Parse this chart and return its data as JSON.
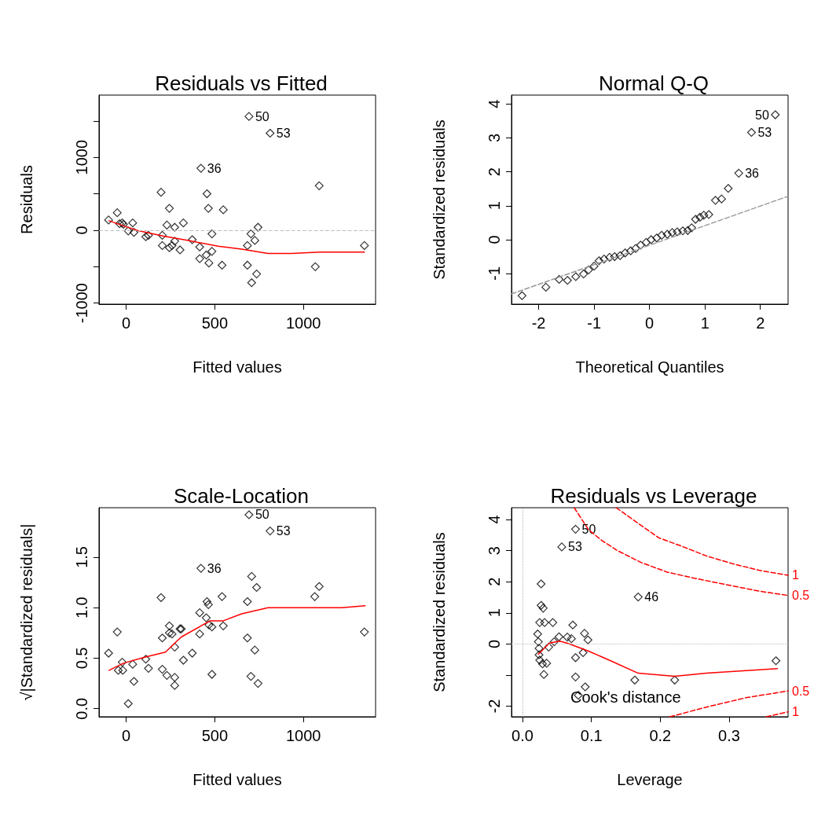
{
  "chart_data": [
    {
      "type": "scatter",
      "title": "Residuals vs Fitted",
      "xlabel": "Fitted values",
      "ylabel": "Residuals",
      "marker": "diamond",
      "xlim": [
        -153,
        1407
      ],
      "ylim": [
        -1014,
        1853
      ],
      "xticks": [
        0,
        500,
        1000
      ],
      "yticks": [
        -1000,
        {
          "value": -500,
          "label": null
        },
        0,
        {
          "value": 500,
          "label": null
        },
        1000,
        {
          "value": 1500,
          "label": null
        }
      ],
      "series": [
        {
          "color": "#000000",
          "x": [
            -99,
            -50,
            -37,
            -22,
            -15,
            12,
            37,
            44,
            111,
            126,
            197,
            204,
            204,
            230,
            244,
            244,
            259,
            274,
            274,
            304,
            323,
            373,
            415,
            415,
            422,
            452,
            456,
            464,
            467,
            484,
            484,
            541,
            548,
            684,
            684,
            693,
            704,
            708,
            726,
            736,
            744,
            812,
            1067,
            1089,
            1344
          ],
          "values": [
            140,
            240,
            90,
            100,
            80,
            -10,
            100,
            -30,
            -90,
            -70,
            520,
            -70,
            -210,
            70,
            300,
            -240,
            -210,
            -150,
            40,
            -270,
            100,
            -130,
            -230,
            -390,
            850,
            -340,
            500,
            300,
            -450,
            -50,
            -290,
            -480,
            280,
            -210,
            -480,
            1560,
            -50,
            -720,
            -140,
            -600,
            40,
            1330,
            -500,
            610,
            -210
          ]
        },
        {
          "type": "line",
          "marker": "none",
          "color": "#ff0000",
          "x": [
            -96,
            -15,
            74,
            207,
            370,
            519,
            652,
            800,
            933,
            1096,
            1344
          ],
          "values": [
            130,
            60,
            -10,
            -80,
            -150,
            -220,
            -260,
            -320,
            -320,
            -300,
            -300
          ]
        }
      ],
      "ref_lines": [
        {
          "axis": "y",
          "value": 0,
          "color": "#bebebe",
          "line_style": "dashed"
        }
      ],
      "annotations": [
        {
          "text": "50",
          "x": 693,
          "y": 1560
        },
        {
          "text": "53",
          "x": 812,
          "y": 1330
        },
        {
          "text": "36",
          "x": 422,
          "y": 850
        }
      ]
    },
    {
      "type": "scatter",
      "title": "Normal Q-Q",
      "xlabel": "Theoretical Quantiles",
      "ylabel": "Standardized residuals",
      "marker": "diamond",
      "xlim": [
        -2.49,
        2.5
      ],
      "ylim": [
        -1.9,
        4.26
      ],
      "xticks": [
        -2,
        -1,
        0,
        1,
        2
      ],
      "yticks": [
        -1,
        0,
        1,
        2,
        3,
        4
      ],
      "series": [
        {
          "color": "#000000",
          "x": [
            -2.3,
            -1.87,
            -1.63,
            -1.48,
            -1.33,
            -1.19,
            -1.1,
            -1.0,
            -0.91,
            -0.82,
            -0.72,
            -0.63,
            -0.53,
            -0.44,
            -0.34,
            -0.25,
            -0.16,
            -0.06,
            0.03,
            0.13,
            0.22,
            0.32,
            0.41,
            0.5,
            0.6,
            0.69,
            0.76,
            0.83,
            0.91,
            0.98,
            1.07,
            1.19,
            1.3,
            1.42,
            1.61,
            1.84,
            2.27
          ],
          "values": [
            -1.65,
            -1.4,
            -1.17,
            -1.2,
            -1.09,
            -1.01,
            -0.89,
            -0.78,
            -0.62,
            -0.57,
            -0.52,
            -0.5,
            -0.47,
            -0.39,
            -0.33,
            -0.26,
            -0.16,
            -0.08,
            0.0,
            0.05,
            0.13,
            0.16,
            0.21,
            0.23,
            0.26,
            0.27,
            0.35,
            0.6,
            0.66,
            0.72,
            0.74,
            1.16,
            1.2,
            1.51,
            1.96,
            3.16,
            3.68
          ]
        },
        {
          "type": "line",
          "marker": "none",
          "line_style": "dashed",
          "color": "#999999",
          "x": [
            -2.49,
            2.5
          ],
          "values": [
            -1.6,
            1.28
          ]
        }
      ],
      "annotations": [
        {
          "text": "50",
          "x": 2.27,
          "y": 3.68
        },
        {
          "text": "53",
          "x": 1.84,
          "y": 3.16
        },
        {
          "text": "36",
          "x": 1.61,
          "y": 1.96
        }
      ]
    },
    {
      "type": "scatter",
      "title": "Scale-Location",
      "xlabel": "Fitted values",
      "ylabel": "√|Standardized residuals|",
      "marker": "diamond",
      "xlim": [
        -153,
        1407
      ],
      "ylim": [
        -0.08,
        1.99
      ],
      "xticks": [
        0,
        500,
        1000
      ],
      "yticks": [
        {
          "value": 0,
          "label": "0.0"
        },
        0.5,
        {
          "value": 1,
          "label": "1.0"
        },
        1.5
      ],
      "series": [
        {
          "color": "#000000",
          "x": [
            -99,
            -50,
            -44,
            -22,
            -19,
            12,
            37,
            44,
            111,
            126,
            197,
            204,
            204,
            230,
            244,
            244,
            259,
            274,
            274,
            274,
            304,
            311,
            323,
            373,
            415,
            415,
            422,
            452,
            456,
            464,
            467,
            484,
            484,
            541,
            548,
            684,
            684,
            693,
            704,
            708,
            726,
            736,
            744,
            812,
            1064,
            1089,
            1344
          ],
          "values": [
            0.55,
            0.76,
            0.38,
            0.46,
            0.38,
            0.05,
            0.44,
            0.27,
            0.49,
            0.4,
            1.1,
            0.7,
            0.39,
            0.33,
            0.82,
            0.75,
            0.74,
            0.61,
            0.31,
            0.23,
            0.79,
            0.79,
            0.48,
            0.55,
            0.95,
            0.74,
            1.39,
            0.9,
            1.06,
            1.03,
            0.83,
            0.81,
            0.34,
            1.11,
            0.82,
            1.06,
            0.7,
            1.92,
            0.32,
            1.31,
            0.58,
            1.2,
            0.25,
            1.76,
            1.11,
            1.21,
            0.76
          ]
        },
        {
          "type": "line",
          "marker": "none",
          "color": "#ff0000",
          "x": [
            -96,
            -15,
            104,
            222,
            311,
            474,
            548,
            652,
            800,
            1215,
            1348
          ],
          "values": [
            0.38,
            0.45,
            0.51,
            0.56,
            0.71,
            0.87,
            0.87,
            0.94,
            1.0,
            1.0,
            1.02
          ]
        }
      ],
      "annotations": [
        {
          "text": "50",
          "x": 693,
          "y": 1.92
        },
        {
          "text": "53",
          "x": 812,
          "y": 1.76
        },
        {
          "text": "36",
          "x": 422,
          "y": 1.39
        }
      ]
    },
    {
      "type": "scatter",
      "title": "Residuals vs Leverage",
      "xlabel": "Leverage",
      "ylabel": "Standardized residuals",
      "marker": "diamond",
      "legend": "bottom left",
      "xlim": [
        -0.016,
        0.3856
      ],
      "ylim": [
        -2.34,
        4.38
      ],
      "xticks": [
        {
          "value": 0,
          "label": "0.0"
        },
        0.1,
        0.2,
        0.3
      ],
      "yticks": [
        -2,
        {
          "value": -1,
          "label": null
        },
        0,
        1,
        2,
        3,
        4
      ],
      "series": [
        {
          "color": "#000000",
          "x": [
            0.077,
            0.057,
            0.027,
            0.027,
            0.03,
            0.025,
            0.032,
            0.044,
            0.073,
            0.09,
            0.095,
            0.022,
            0.023,
            0.024,
            0.024,
            0.025,
            0.029,
            0.031,
            0.035,
            0.038,
            0.046,
            0.053,
            0.065,
            0.071,
            0.077,
            0.088,
            0.077,
            0.091,
            0.081,
            0.168,
            0.163,
            0.221,
            0.368
          ],
          "values": [
            3.69,
            3.12,
            1.93,
            1.24,
            1.15,
            0.69,
            0.69,
            0.69,
            0.61,
            0.34,
            0.13,
            0.32,
            0.07,
            -0.14,
            -0.35,
            -0.52,
            -0.64,
            -0.98,
            -0.62,
            -0.1,
            0.07,
            0.23,
            0.22,
            0.17,
            -0.44,
            -0.28,
            -1.06,
            -1.38,
            -1.65,
            1.51,
            -1.16,
            -1.16,
            -0.54
          ]
        },
        {
          "type": "line",
          "marker": "none",
          "color": "#ff0000",
          "x": [
            0.023,
            0.039,
            0.054,
            0.067,
            0.096,
            0.126,
            0.168,
            0.221,
            0.267,
            0.37
          ],
          "values": [
            -0.33,
            0.03,
            0.09,
            0.01,
            -0.23,
            -0.52,
            -0.94,
            -1.04,
            -0.94,
            -0.79
          ]
        },
        {
          "type": "line",
          "name": "Cook's distance",
          "marker": "none",
          "line_style": "dashed",
          "color": "#ff0000",
          "x": [
            0.136,
            0.16,
            0.198,
            0.229,
            0.267,
            0.305,
            0.343,
            0.3856
          ],
          "values": [
            4.38,
            4.0,
            3.41,
            3.16,
            2.83,
            2.58,
            2.37,
            2.21
          ]
        },
        {
          "type": "line",
          "marker": "none",
          "line_style": "dashed",
          "color": "#ff0000",
          "x": [
            0.075,
            0.096,
            0.115,
            0.138,
            0.172,
            0.21,
            0.248,
            0.286,
            0.343,
            0.3856
          ],
          "values": [
            4.38,
            3.67,
            3.33,
            3.0,
            2.62,
            2.31,
            2.12,
            1.95,
            1.7,
            1.56
          ]
        },
        {
          "type": "line",
          "marker": "none",
          "line_style": "dashed",
          "color": "#ff0000",
          "x": [
            0.214,
            0.267,
            0.324,
            0.3856
          ],
          "values": [
            -2.34,
            -2.03,
            -1.73,
            -1.51
          ]
        },
        {
          "type": "line",
          "marker": "none",
          "line_style": "dashed",
          "color": "#ff0000",
          "x": [
            0.354,
            0.3856
          ],
          "values": [
            -2.34,
            -2.18
          ]
        }
      ],
      "ref_lines": [
        {
          "axis": "y",
          "value": 0,
          "color": "#bebebe",
          "line_style": "dotted"
        },
        {
          "axis": "x",
          "value": 0,
          "color": "#bebebe",
          "line_style": "dotted"
        }
      ],
      "annotations": [
        {
          "text": "50",
          "x": 0.077,
          "y": 3.69
        },
        {
          "text": "53",
          "x": 0.057,
          "y": 3.12
        },
        {
          "text": "46",
          "x": 0.168,
          "y": 1.51
        },
        {
          "text": "1",
          "x": 0.3856,
          "y": 2.21
        },
        {
          "text": "0.5",
          "x": 0.3856,
          "y": 1.56
        },
        {
          "text": "0.5",
          "x": 0.3856,
          "y": -1.51
        },
        {
          "text": "1",
          "x": 0.3856,
          "y": -2.18
        }
      ]
    }
  ]
}
